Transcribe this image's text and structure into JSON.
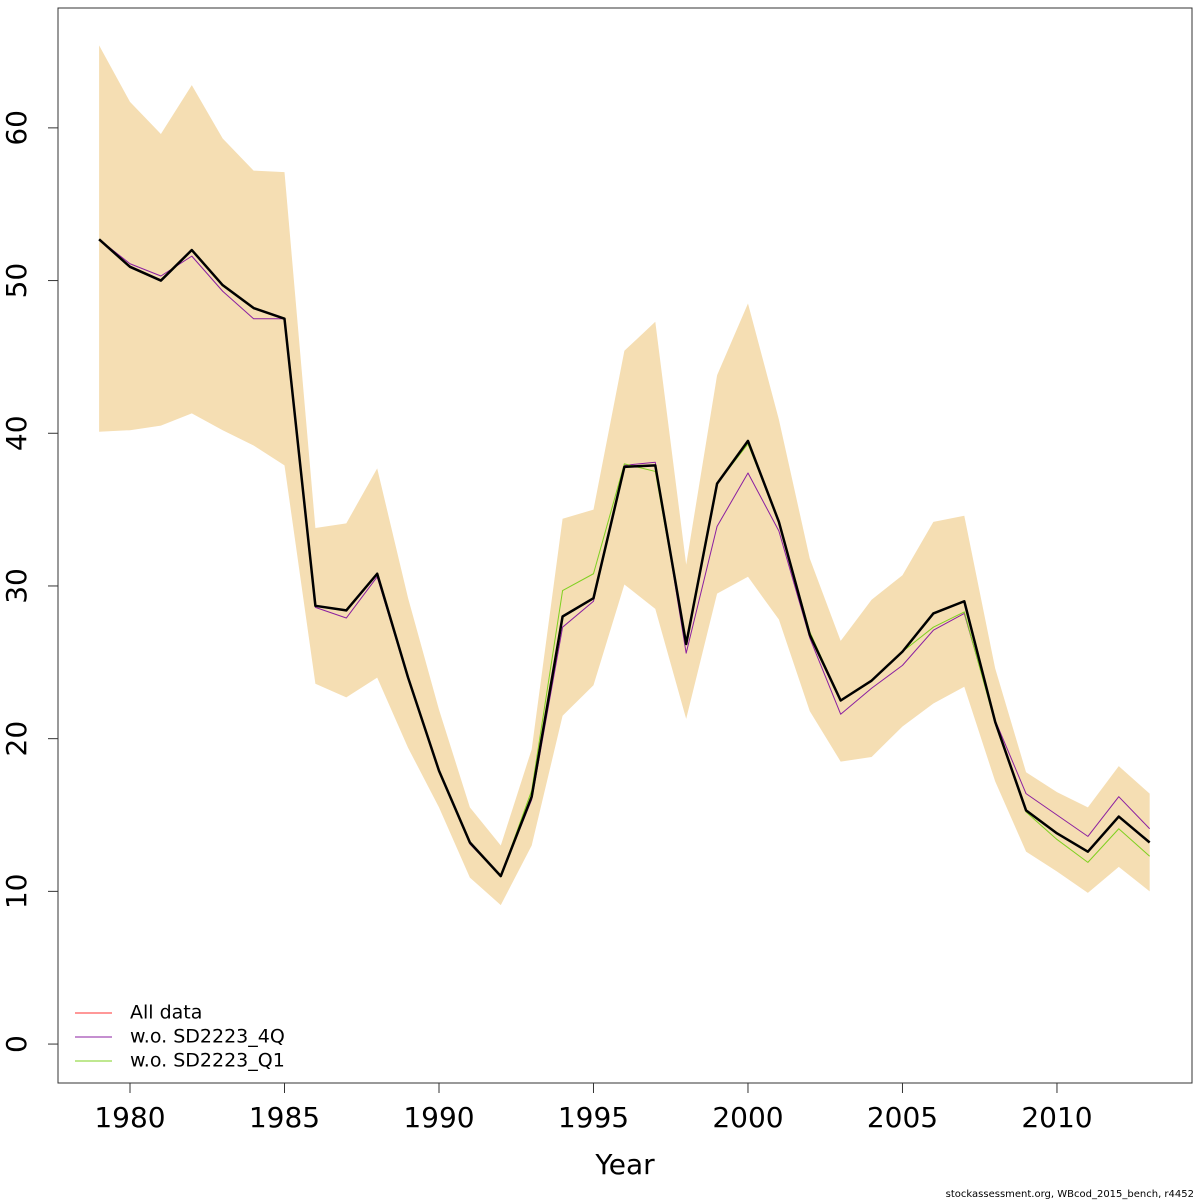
{
  "chart_data": {
    "type": "line",
    "x_label": "Year",
    "footnote": "stockassessment.org, WBcod_2015_bench, r4452",
    "x": [
      1979,
      1980,
      1981,
      1982,
      1983,
      1984,
      1985,
      1986,
      1987,
      1988,
      1989,
      1990,
      1991,
      1992,
      1993,
      1994,
      1995,
      1996,
      1997,
      1998,
      1999,
      2000,
      2001,
      2002,
      2003,
      2004,
      2005,
      2006,
      2007,
      2008,
      2009,
      2010,
      2011,
      2012,
      2013
    ],
    "band": {
      "color": "#f5deb3",
      "upper": [
        65.4,
        61.7,
        59.6,
        62.8,
        59.3,
        57.2,
        57.1,
        33.8,
        34.1,
        37.7,
        29.2,
        21.9,
        15.5,
        13.0,
        19.3,
        34.4,
        35.0,
        45.4,
        47.3,
        31.4,
        43.8,
        48.5,
        40.9,
        31.8,
        26.4,
        29.1,
        30.7,
        34.2,
        34.6,
        24.6,
        17.8,
        16.5,
        15.5,
        18.2,
        16.4
      ],
      "lower": [
        40.1,
        40.2,
        40.5,
        41.3,
        40.2,
        39.2,
        37.9,
        23.6,
        22.7,
        24.0,
        19.4,
        15.5,
        10.9,
        9.1,
        13.0,
        21.5,
        23.5,
        30.1,
        28.5,
        21.3,
        29.5,
        30.6,
        27.8,
        21.8,
        18.5,
        18.8,
        20.8,
        22.3,
        23.4,
        17.2,
        12.6,
        11.3,
        9.9,
        11.6,
        10.0
      ]
    },
    "estimate_color": "#000000",
    "series": [
      {
        "name": "All data",
        "color": "#ff3030",
        "values": [
          52.7,
          50.9,
          50.0,
          52.0,
          49.7,
          48.2,
          47.5,
          28.7,
          28.4,
          30.8,
          24.0,
          17.9,
          13.2,
          11.0,
          16.2,
          28.0,
          29.2,
          37.8,
          37.9,
          26.2,
          36.7,
          39.5,
          34.2,
          26.8,
          22.5,
          23.8,
          25.7,
          28.2,
          29.0,
          21.1,
          15.3,
          13.8,
          12.6,
          14.9,
          13.2
        ]
      },
      {
        "name": "w.o. SD2223_4Q",
        "color": "#8b1fa0",
        "values": [
          52.7,
          51.1,
          50.3,
          51.6,
          49.3,
          47.5,
          47.5,
          28.6,
          27.9,
          30.6,
          23.9,
          17.9,
          13.1,
          11.0,
          16.0,
          27.3,
          29.0,
          37.9,
          38.1,
          25.6,
          33.9,
          37.4,
          33.6,
          26.6,
          21.6,
          23.3,
          24.8,
          27.1,
          28.2,
          21.2,
          16.4,
          15.0,
          13.6,
          16.2,
          14.1
        ]
      },
      {
        "name": "w.o. SD2223_Q1",
        "color": "#7fd020",
        "values": [
          52.7,
          50.9,
          50.0,
          52.0,
          49.7,
          48.2,
          47.5,
          28.7,
          28.4,
          30.8,
          24.0,
          17.9,
          13.2,
          11.0,
          16.6,
          29.7,
          30.8,
          38.0,
          37.5,
          26.2,
          36.7,
          39.3,
          34.2,
          27.0,
          22.5,
          23.8,
          25.7,
          27.3,
          28.3,
          21.0,
          15.2,
          13.4,
          11.9,
          14.1,
          12.3
        ]
      }
    ],
    "xlim": [
      1977.67,
      2014.37
    ],
    "xticks": [
      1980,
      1985,
      1990,
      1995,
      2000,
      2005,
      2010
    ],
    "ylim": [
      -2.55,
      67.85
    ],
    "yticks": [
      0,
      10,
      20,
      30,
      40,
      50,
      60
    ],
    "legend": "bottom-left"
  }
}
